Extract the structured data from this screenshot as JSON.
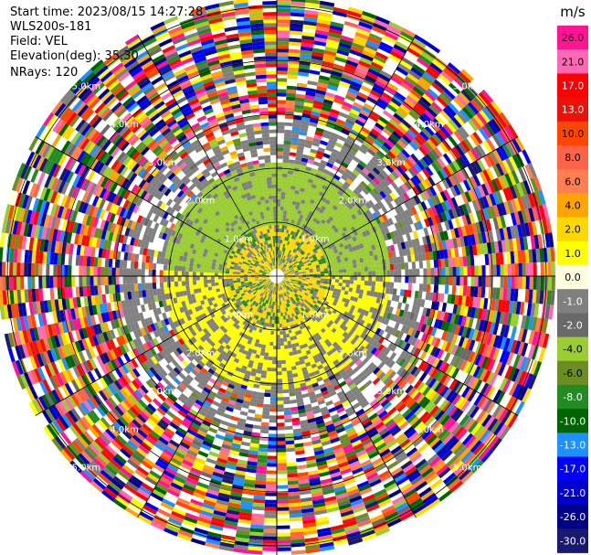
{
  "header": {
    "start_time": "Start time: 2023/08/15 14:27:28",
    "instrument": "WLS200s-181",
    "field": "Field: VEL",
    "elevation": "Elevation(deg): 35.30",
    "nrays": "NRays: 120"
  },
  "chart_data": {
    "type": "heatmap",
    "subtype": "polar-ppi",
    "field": "VEL",
    "units": "m/s",
    "n_rays": 120,
    "range_rings": [
      "1.0km",
      "2.0km",
      "3.0km",
      "4.0km",
      "5.0km"
    ],
    "ring_label_bearings_deg": [
      45,
      135,
      225,
      315
    ],
    "colorbar": {
      "label": "m/s",
      "ticks": [
        "26.0",
        "21.0",
        "17.0",
        "13.0",
        "10.0",
        "8.0",
        "6.0",
        "4.0",
        "2.0",
        "1.0",
        "0.0",
        "-1.0",
        "-2.0",
        "-4.0",
        "-6.0",
        "-8.0",
        "-10.0",
        "-13.0",
        "-17.0",
        "-21.0",
        "-26.0",
        "-30.0"
      ],
      "colors": [
        "#ff1493",
        "#ff69b4",
        "#ff0000",
        "#e8140c",
        "#ff4500",
        "#ff6347",
        "#ff7f50",
        "#ffa500",
        "#ffd700",
        "#ffff00",
        "#ffffe0",
        "#808080",
        "#696969",
        "#9acd32",
        "#6b8e23",
        "#228b22",
        "#006400",
        "#1e90ff",
        "#0000ff",
        "#0000cd",
        "#00008b",
        "#191970"
      ]
    },
    "inner_region_note_values": {
      "core_colors": [
        "#ffd700",
        "#ffff00",
        "#808080",
        "#9acd32",
        "#228b22"
      ]
    }
  }
}
